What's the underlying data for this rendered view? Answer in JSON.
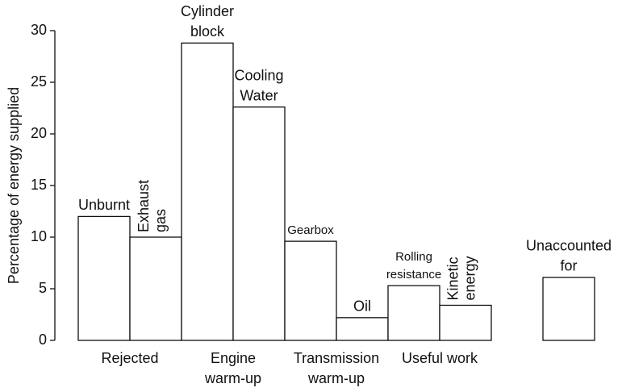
{
  "chart_data": {
    "type": "bar",
    "y_label": "Percentage of energy supplied",
    "bars": [
      {
        "label": [
          "Unburnt"
        ],
        "value": 12
      },
      {
        "label": [
          "Exhaust",
          "gas"
        ],
        "value": 10
      },
      {
        "label": [
          "Cylinder",
          "block"
        ],
        "value": 28.8
      },
      {
        "label": [
          "Cooling",
          "Water"
        ],
        "value": 22.6
      },
      {
        "label": [
          "Gearbox"
        ],
        "value": 9.6
      },
      {
        "label": [
          "Oil"
        ],
        "value": 2.2
      },
      {
        "label": [
          "Rolling",
          "resistance"
        ],
        "value": 5.3
      },
      {
        "label": [
          "Kinetic",
          "energy"
        ],
        "value": 3.4
      },
      {
        "label": [
          "Unaccounted",
          "for"
        ],
        "value": 6.1
      }
    ],
    "groups": [
      {
        "label": [
          "Rejected"
        ]
      },
      {
        "label": [
          "Engine",
          "warm-up"
        ]
      },
      {
        "label": [
          "Transmission",
          "warm-up"
        ]
      },
      {
        "label": [
          "Useful work"
        ]
      }
    ],
    "color": "#ffffff",
    "ylim": [
      0,
      30
    ],
    "yticks": [
      0,
      5,
      10,
      15,
      20,
      25,
      30
    ]
  }
}
